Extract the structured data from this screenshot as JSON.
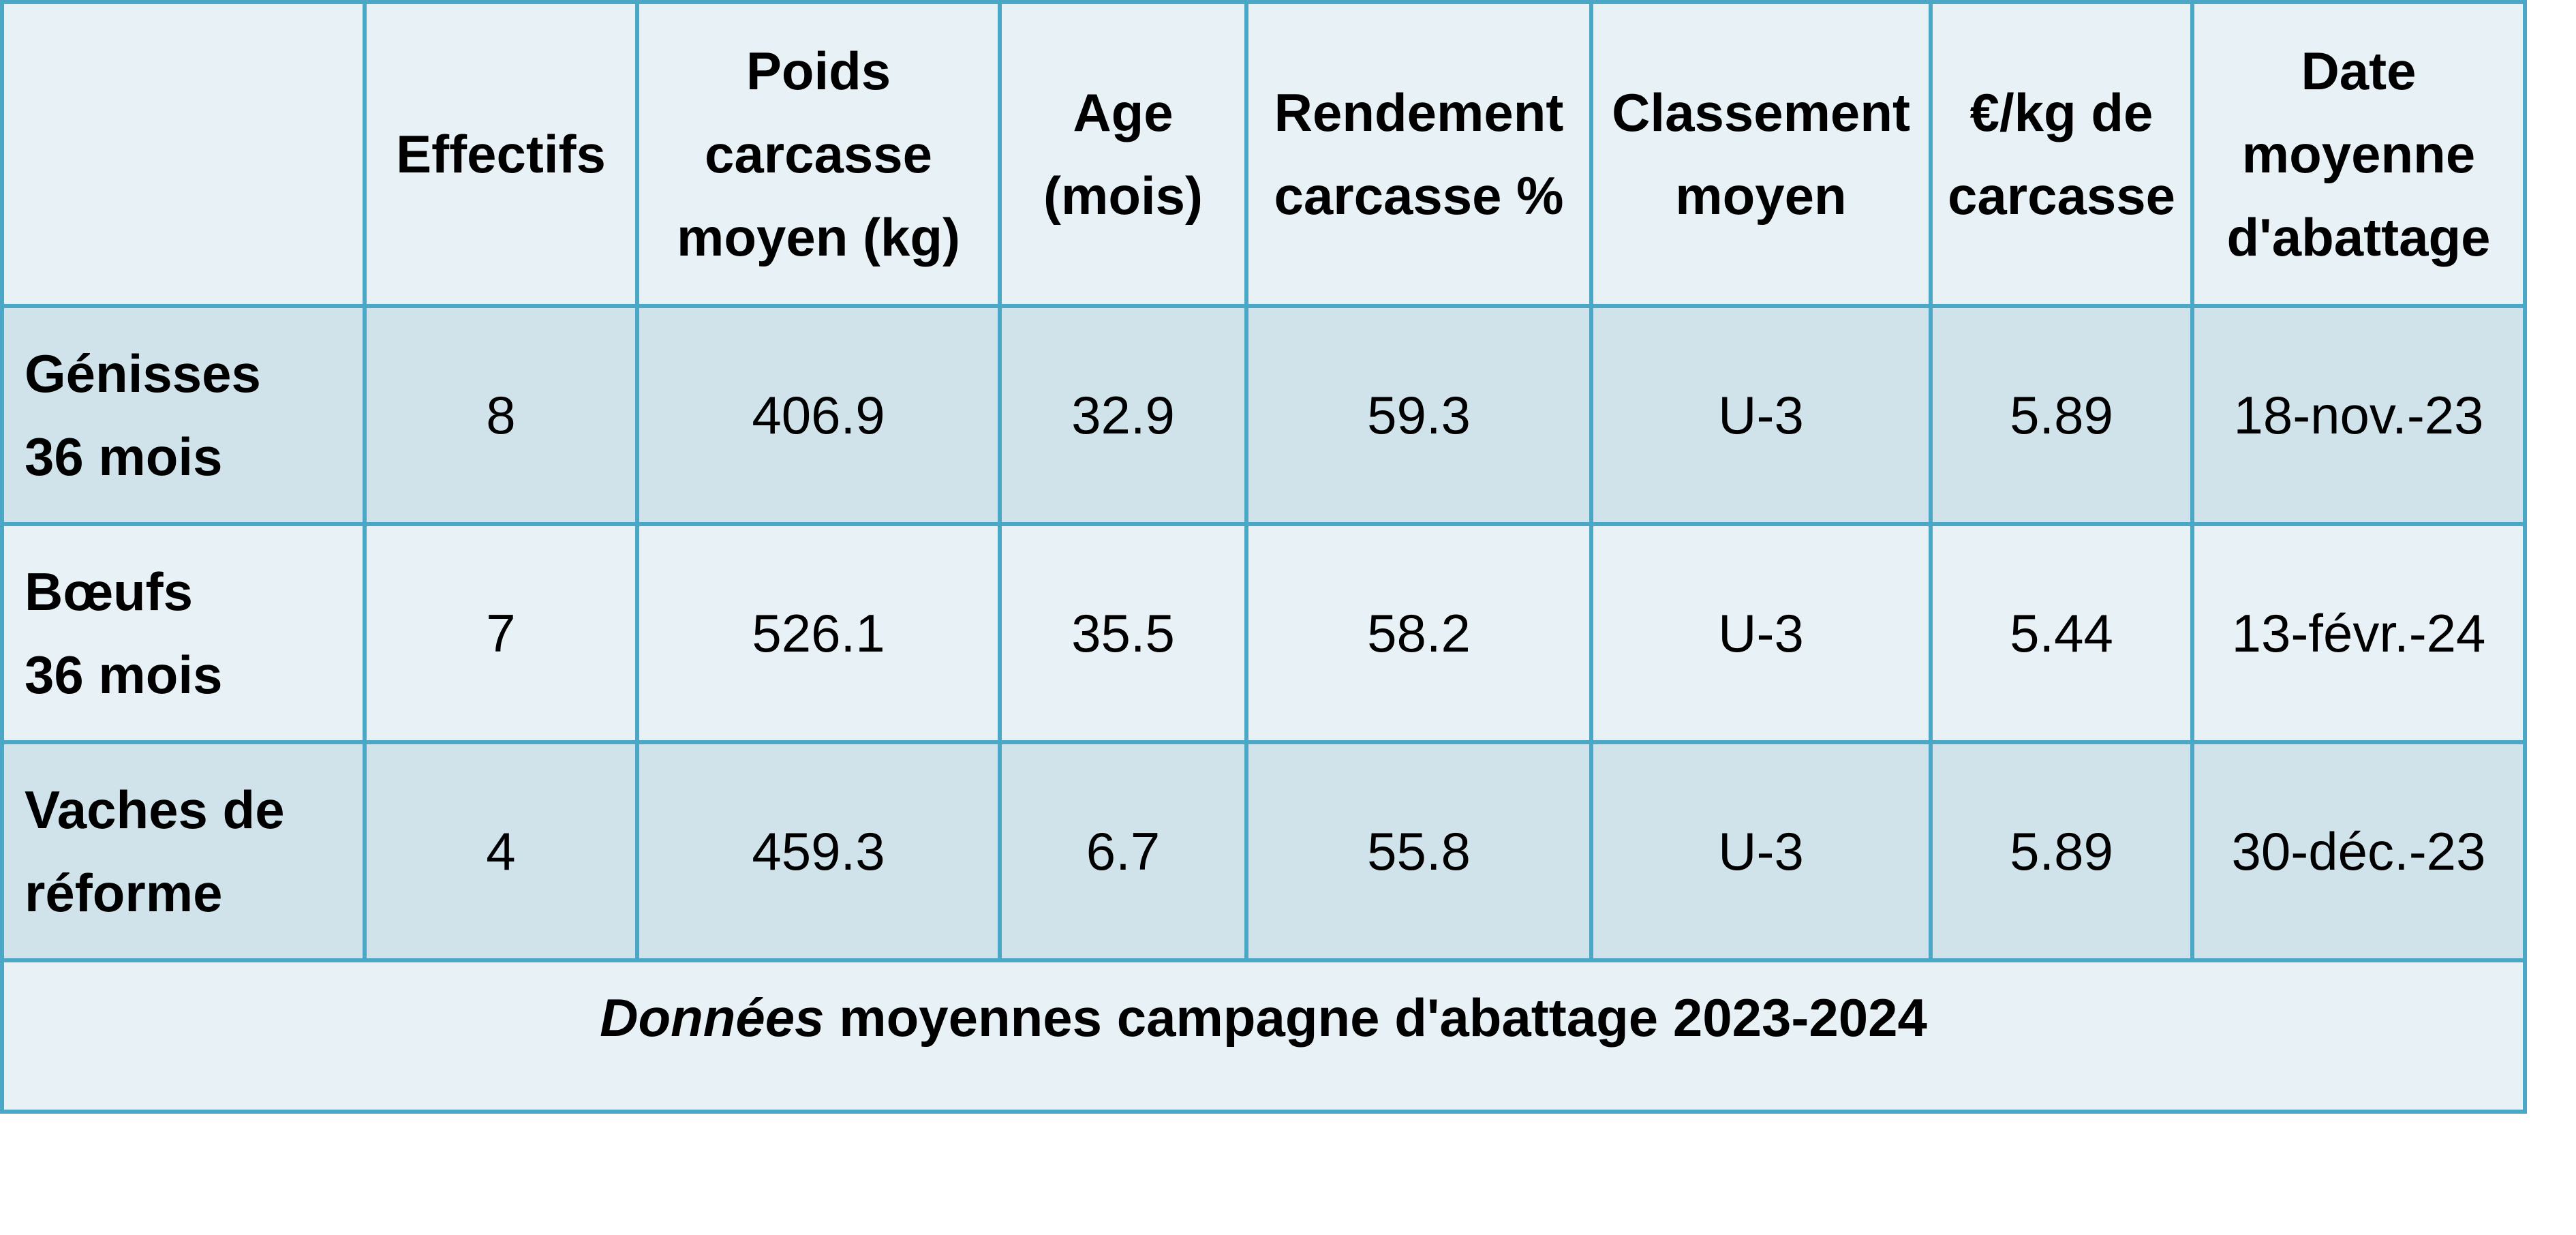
{
  "table": {
    "headers": [
      [
        ""
      ],
      [
        "Effectifs"
      ],
      [
        "Poids",
        "carcasse",
        "moyen (kg)"
      ],
      [
        "Age",
        "(mois)"
      ],
      [
        "Rendement",
        "carcasse %"
      ],
      [
        "Classement",
        "moyen"
      ],
      [
        "€/kg de",
        "carcasse"
      ],
      [
        "Date",
        "moyenne",
        "d'abattage"
      ]
    ],
    "rows": [
      {
        "label": [
          "Génisses",
          "36 mois"
        ],
        "cells": [
          "8",
          "406.9",
          "32.9",
          "59.3",
          "U-3",
          "5.89",
          "18-nov.-23"
        ]
      },
      {
        "label": [
          "Bœufs",
          "36 mois"
        ],
        "cells": [
          "7",
          "526.1",
          "35.5",
          "58.2",
          "U-3",
          "5.44",
          "13-févr.-24"
        ]
      },
      {
        "label": [
          "Vaches de",
          "réforme"
        ],
        "cells": [
          "4",
          "459.3",
          "6.7",
          "55.8",
          "U-3",
          "5.89",
          "30-déc.-23"
        ]
      }
    ],
    "footer": {
      "italic": "Données",
      "rest": " moyennes campagne d'abattage 2023-2024"
    }
  },
  "colors": {
    "border": "#4aa8c6",
    "light_fill": "#e8f1f5",
    "shade_fill": "#d0e3eb"
  }
}
